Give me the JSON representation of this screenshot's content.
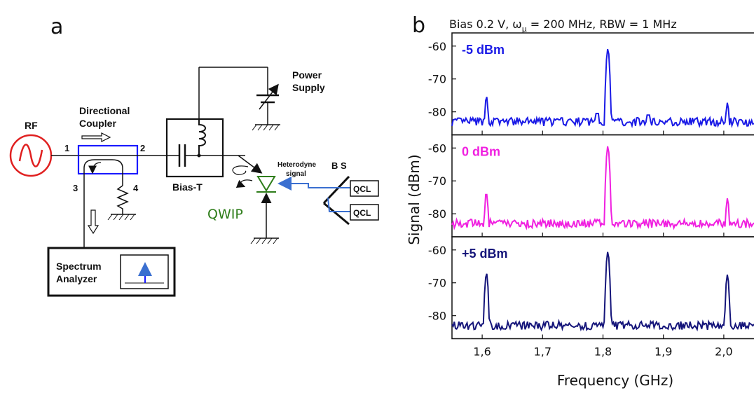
{
  "panel_a": {
    "letter": "a",
    "rf": "RF",
    "directional_coupler": "Directional\nCoupler",
    "port1": "1",
    "port2": "2",
    "port3": "3",
    "port4": "4",
    "bias_t": "Bias-T",
    "power_supply": "Power\nSupply",
    "heterodyne_signal": "Heterodyne\nsignal",
    "bs": "B S",
    "qcl_top": "QCL",
    "qcl_bottom": "QCL",
    "qwip": "QWIP",
    "spectrum_analyzer": "Spectrum\nAnalyzer",
    "colors": {
      "rf": "#e02020",
      "coupler": "#1a1aff",
      "qwip": "#2e7d1a",
      "beam": "#3a6fd0"
    }
  },
  "panel_b": {
    "letter": "b",
    "title": "Bias 0.2 V, ω",
    "title_sub": "μ",
    "title_rest": " = 200 MHz, RBW = 1 MHz",
    "ylabel": "Signal (dBm)",
    "xlabel": "Frequency (GHz)"
  },
  "chart_data": {
    "type": "line",
    "title": "Bias 0.2 V, ωμ = 200 MHz, RBW = 1 MHz",
    "xlabel": "Frequency (GHz)",
    "ylabel": "Signal (dBm)",
    "xlim": [
      1.55,
      2.05
    ],
    "x_ticks": [
      "1,6",
      "1,7",
      "1,8",
      "1,9",
      "2,0"
    ],
    "x_tick_values": [
      1.6,
      1.7,
      1.8,
      1.9,
      2.0
    ],
    "panels": [
      {
        "name": "-5 dBm",
        "color": "#1a1ae6",
        "ylim": [
          -87,
          -56
        ],
        "y_ticks": [
          "-60",
          "-70",
          "-80"
        ],
        "y_tick_values": [
          -60,
          -70,
          -80
        ],
        "baseline": -83,
        "peaks": [
          {
            "x": 1.607,
            "y": -75.5
          },
          {
            "x": 1.808,
            "y": -61
          },
          {
            "x": 2.006,
            "y": -77
          }
        ],
        "minor_bumps": [
          {
            "x": 1.79,
            "y": -80.5
          },
          {
            "x": 1.875,
            "y": -81
          }
        ]
      },
      {
        "name": "0 dBm",
        "color": "#f020e0",
        "ylim": [
          -87,
          -56
        ],
        "y_ticks": [
          "-60",
          "-70",
          "-80"
        ],
        "y_tick_values": [
          -60,
          -70,
          -80
        ],
        "baseline": -83,
        "peaks": [
          {
            "x": 1.607,
            "y": -73.5
          },
          {
            "x": 1.808,
            "y": -59.5
          },
          {
            "x": 2.006,
            "y": -75
          }
        ],
        "minor_bumps": []
      },
      {
        "name": "+5 dBm",
        "color": "#15157a",
        "ylim": [
          -87,
          -56
        ],
        "y_ticks": [
          "-60",
          "-70",
          "-80"
        ],
        "y_tick_values": [
          -60,
          -70,
          -80
        ],
        "baseline": -83,
        "peaks": [
          {
            "x": 1.607,
            "y": -67
          },
          {
            "x": 1.808,
            "y": -60.5
          },
          {
            "x": 2.006,
            "y": -67.5
          }
        ],
        "minor_bumps": []
      }
    ]
  }
}
